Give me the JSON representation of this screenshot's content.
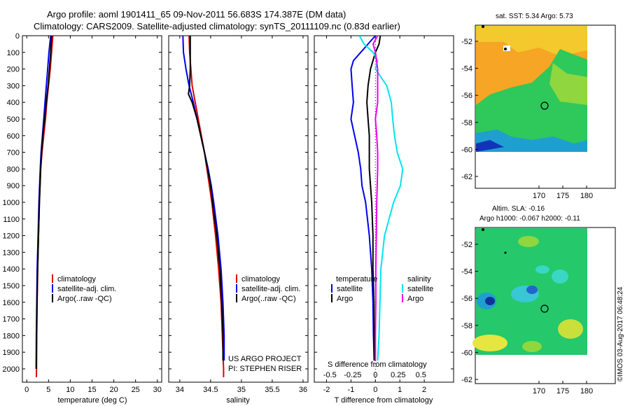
{
  "title": {
    "line1": "Argo profile: aoml 1901411_65 09-Nov-2011 56.683S 174.387E (DM data)",
    "line2": "Climatology: CARS2009. Satellite-adjusted climatology: synTS_20111109.nc (0.83d earlier)"
  },
  "depth_ticks": [
    "0",
    "100",
    "200",
    "300",
    "400",
    "500",
    "600",
    "700",
    "800",
    "900",
    "1000",
    "1100",
    "1200",
    "1300",
    "1400",
    "1500",
    "1600",
    "1700",
    "1800",
    "1900",
    "2000"
  ],
  "colors": {
    "climatology": "#e00000",
    "satellite": "#0000ee",
    "argo": "#000000",
    "sat_cyan": "#00e5ee",
    "argo_magenta": "#ee00ee"
  },
  "legend": {
    "climatology": "climatology",
    "satellite_adj": "satellite-adj. clim.",
    "argo": "Argo(..raw -QC)"
  },
  "panel3": {
    "temp_header": "temperature",
    "sal_header": "salinity",
    "satellite": "satellite",
    "argo": "Argo",
    "s_label": "S difference from climatology",
    "s_ticks": [
      "-0.5",
      "-0.25",
      "0",
      "0.25",
      "0.5"
    ]
  },
  "credit": {
    "line1": "US ARGO PROJECT",
    "line2": "PI: STEPHEN RISER"
  },
  "sst_panel": {
    "header": "sat. SST: 5.34  Argo: 5.73"
  },
  "sla_panel": {
    "header1": "Altim. SLA: -0.16",
    "header2": "Argo h1000: -0.067  h2000: -0.11"
  },
  "map_lat_ticks": [
    "-52",
    "-54",
    "-56",
    "-58",
    "-60",
    "-62"
  ],
  "map_lon_ticks": [
    "170",
    "175",
    "180"
  ],
  "watermark": "©IMOS 03-Aug-2017 06:48:24",
  "chart_data": [
    {
      "type": "line",
      "xlabel": "temperature (deg C)",
      "xticks": [
        "0",
        "5",
        "10",
        "15",
        "20",
        "25",
        "30"
      ],
      "xlim": [
        -1,
        31
      ],
      "ylim": [
        2080,
        0
      ],
      "series": [
        {
          "name": "climatology",
          "depth": [
            0,
            100,
            200,
            300,
            400,
            500,
            600,
            700,
            800,
            1000,
            1200,
            1400,
            1600,
            1800,
            2000,
            2050
          ],
          "values": [
            6.0,
            5.7,
            5.4,
            5.0,
            4.6,
            4.3,
            3.9,
            3.5,
            3.2,
            2.9,
            2.7,
            2.5,
            2.4,
            2.3,
            2.25,
            2.2
          ]
        },
        {
          "name": "satellite-adj. clim.",
          "depth": [
            0,
            100,
            200,
            300,
            400,
            500,
            600,
            700,
            800,
            1000,
            1200,
            1400,
            1600,
            1800,
            2000
          ],
          "values": [
            5.5,
            5.1,
            4.8,
            4.5,
            4.2,
            3.9,
            3.6,
            3.3,
            3.1,
            2.8,
            2.6,
            2.4,
            2.3,
            2.2,
            2.15
          ]
        },
        {
          "name": "Argo(..raw -QC)",
          "depth": [
            0,
            50,
            100,
            200,
            300,
            400,
            500,
            600,
            700,
            800,
            1000,
            1200,
            1400,
            1600,
            1800,
            2000
          ],
          "values": [
            5.7,
            5.6,
            5.5,
            5.2,
            4.9,
            4.5,
            4.1,
            3.7,
            3.4,
            3.2,
            2.9,
            2.7,
            2.5,
            2.35,
            2.25,
            2.2
          ]
        }
      ]
    },
    {
      "type": "line",
      "xlabel": "salinity",
      "xticks": [
        "34",
        "34.5",
        "35",
        "35.5",
        "36"
      ],
      "xlim": [
        33.82,
        36.08
      ],
      "ylim": [
        2080,
        0
      ],
      "series": [
        {
          "name": "climatology",
          "depth": [
            0,
            100,
            200,
            300,
            400,
            500,
            600,
            700,
            800,
            900,
            1000,
            1200,
            1400,
            1600,
            1800,
            2000,
            2050
          ],
          "values": [
            34.15,
            34.16,
            34.18,
            34.2,
            34.25,
            34.3,
            34.35,
            34.4,
            34.44,
            34.48,
            34.52,
            34.58,
            34.63,
            34.67,
            34.69,
            34.71,
            34.71
          ]
        },
        {
          "name": "satellite-adj. clim.",
          "depth": [
            0,
            100,
            200,
            300,
            400,
            500,
            600,
            700,
            800,
            900,
            1000,
            1200,
            1400,
            1600,
            1800,
            1950
          ],
          "values": [
            34.05,
            34.06,
            34.1,
            34.15,
            34.22,
            34.28,
            34.34,
            34.4,
            34.46,
            34.51,
            34.55,
            34.62,
            34.67,
            34.7,
            34.72,
            34.72
          ]
        },
        {
          "name": "Argo(..raw -QC)",
          "depth": [
            0,
            100,
            200,
            300,
            350,
            400,
            500,
            600,
            700,
            800,
            900,
            1000,
            1200,
            1400,
            1600,
            1800,
            1950
          ],
          "values": [
            34.17,
            34.17,
            34.17,
            34.16,
            34.14,
            34.2,
            34.28,
            34.34,
            34.4,
            34.45,
            34.5,
            34.53,
            34.6,
            34.65,
            34.68,
            34.7,
            34.7
          ]
        }
      ]
    },
    {
      "type": "line",
      "xlabel": "T difference from climatology",
      "xticks": [
        "-2",
        "-1",
        "0",
        "1",
        "2"
      ],
      "xlim": [
        -2.5,
        3.2
      ],
      "ylim": [
        2080,
        0
      ],
      "series": [
        {
          "name": "temperature satellite",
          "depth": [
            0,
            50,
            100,
            150,
            200,
            300,
            400,
            500,
            600,
            700,
            800,
            900,
            1000,
            1200,
            1400,
            1600,
            1800,
            1950
          ],
          "values": [
            0.0,
            -0.3,
            -0.6,
            -0.9,
            -1.0,
            -0.95,
            -0.9,
            -1.0,
            -0.85,
            -0.7,
            -0.6,
            -0.55,
            -0.4,
            -0.25,
            -0.15,
            -0.1,
            -0.08,
            -0.05
          ]
        },
        {
          "name": "temperature Argo",
          "depth": [
            0,
            50,
            100,
            200,
            300,
            400,
            500,
            600,
            700,
            800,
            1000,
            1200,
            1400,
            1600,
            1800,
            1950
          ],
          "values": [
            0.2,
            0.15,
            0.0,
            -0.2,
            -0.3,
            -0.35,
            -0.3,
            -0.25,
            -0.25,
            -0.25,
            -0.15,
            -0.1,
            -0.1,
            -0.06,
            -0.05,
            -0.04
          ]
        },
        {
          "name": "salinity satellite",
          "depth": [
            0,
            50,
            100,
            150,
            200,
            300,
            400,
            500,
            600,
            700,
            800,
            900,
            1000,
            1200,
            1400,
            1600,
            1800,
            1950
          ],
          "values": [
            -0.35,
            -0.25,
            -0.05,
            0.05,
            0.0,
            0.25,
            0.35,
            0.38,
            0.42,
            0.48,
            0.6,
            0.55,
            0.4,
            0.2,
            0.12,
            0.1,
            0.08,
            0.05
          ]
        },
        {
          "name": "salinity Argo",
          "depth": [
            0,
            50,
            100,
            200,
            300,
            400,
            500,
            600,
            700,
            800,
            1000,
            1200,
            1400,
            1600,
            1800,
            1950
          ],
          "values": [
            0.05,
            -0.05,
            0.0,
            0.05,
            0.05,
            0.05,
            0.0,
            0.03,
            0.05,
            0.05,
            0.03,
            0.02,
            0.01,
            0.01,
            0.0,
            0.0
          ]
        }
      ]
    }
  ]
}
